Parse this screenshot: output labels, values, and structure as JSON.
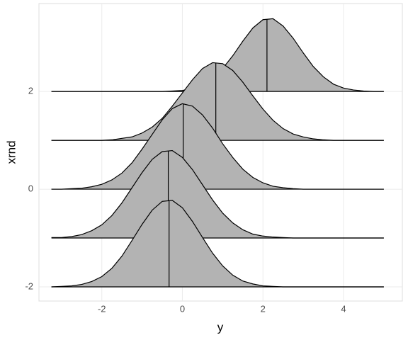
{
  "chart_data": {
    "type": "ridgeline",
    "x_label": "y",
    "y_label": "xrnd",
    "xlim": [
      -3.56,
      5.46
    ],
    "ylim": [
      -2.29,
      3.8
    ],
    "xticks": [
      -2,
      0,
      2,
      4
    ],
    "yticks": [
      -2,
      0,
      2
    ],
    "grid": true,
    "fill_color": "#b3b3b3",
    "line_color": "#000000",
    "x": [
      -3.25,
      -3.0,
      -2.75,
      -2.5,
      -2.25,
      -2.0,
      -1.75,
      -1.5,
      -1.25,
      -1.0,
      -0.75,
      -0.5,
      -0.25,
      0,
      0.25,
      0.5,
      0.75,
      1.0,
      1.25,
      1.5,
      1.75,
      2.0,
      2.25,
      2.5,
      2.75,
      3.0,
      3.25,
      3.5,
      3.75,
      4.0,
      4.25,
      4.5,
      4.75,
      5.0
    ],
    "series": [
      {
        "baseline": -2,
        "median": -0.33,
        "values": [
          0,
          0.01,
          0.02,
          0.05,
          0.11,
          0.21,
          0.38,
          0.63,
          0.95,
          1.28,
          1.57,
          1.75,
          1.77,
          1.62,
          1.34,
          1.01,
          0.69,
          0.43,
          0.24,
          0.12,
          0.06,
          0.02,
          0.01,
          0,
          0,
          0,
          0,
          0,
          0,
          0,
          0,
          0,
          0,
          0
        ]
      },
      {
        "baseline": -1,
        "median": -0.35,
        "values": [
          0.01,
          0.01,
          0.03,
          0.07,
          0.15,
          0.27,
          0.46,
          0.72,
          1.03,
          1.34,
          1.61,
          1.77,
          1.79,
          1.65,
          1.4,
          1.09,
          0.78,
          0.51,
          0.31,
          0.17,
          0.08,
          0.04,
          0.02,
          0.01,
          0,
          0,
          0,
          0,
          0,
          0,
          0,
          0,
          0,
          0
        ]
      },
      {
        "baseline": 0,
        "median": 0.02,
        "values": [
          0,
          0,
          0.01,
          0.02,
          0.05,
          0.1,
          0.19,
          0.33,
          0.54,
          0.82,
          1.12,
          1.42,
          1.65,
          1.75,
          1.7,
          1.52,
          1.25,
          0.93,
          0.65,
          0.41,
          0.24,
          0.13,
          0.06,
          0.03,
          0.01,
          0,
          0,
          0,
          0,
          0,
          0,
          0,
          0,
          0
        ]
      },
      {
        "baseline": 1,
        "median": 0.83,
        "values": [
          0,
          0,
          0,
          0,
          0,
          0,
          0.01,
          0.04,
          0.07,
          0.15,
          0.27,
          0.45,
          0.7,
          0.97,
          1.24,
          1.47,
          1.59,
          1.57,
          1.43,
          1.19,
          0.91,
          0.64,
          0.41,
          0.24,
          0.13,
          0.07,
          0.03,
          0.01,
          0,
          0,
          0,
          0,
          0,
          0
        ]
      },
      {
        "baseline": 2,
        "median": 2.1,
        "values": [
          0,
          0,
          0,
          0,
          0,
          0,
          0,
          0,
          0,
          0,
          0,
          0,
          0.01,
          0.02,
          0.06,
          0.13,
          0.26,
          0.47,
          0.73,
          1.03,
          1.3,
          1.47,
          1.49,
          1.34,
          1.09,
          0.79,
          0.51,
          0.3,
          0.15,
          0.07,
          0.03,
          0.01,
          0,
          0
        ]
      }
    ]
  }
}
